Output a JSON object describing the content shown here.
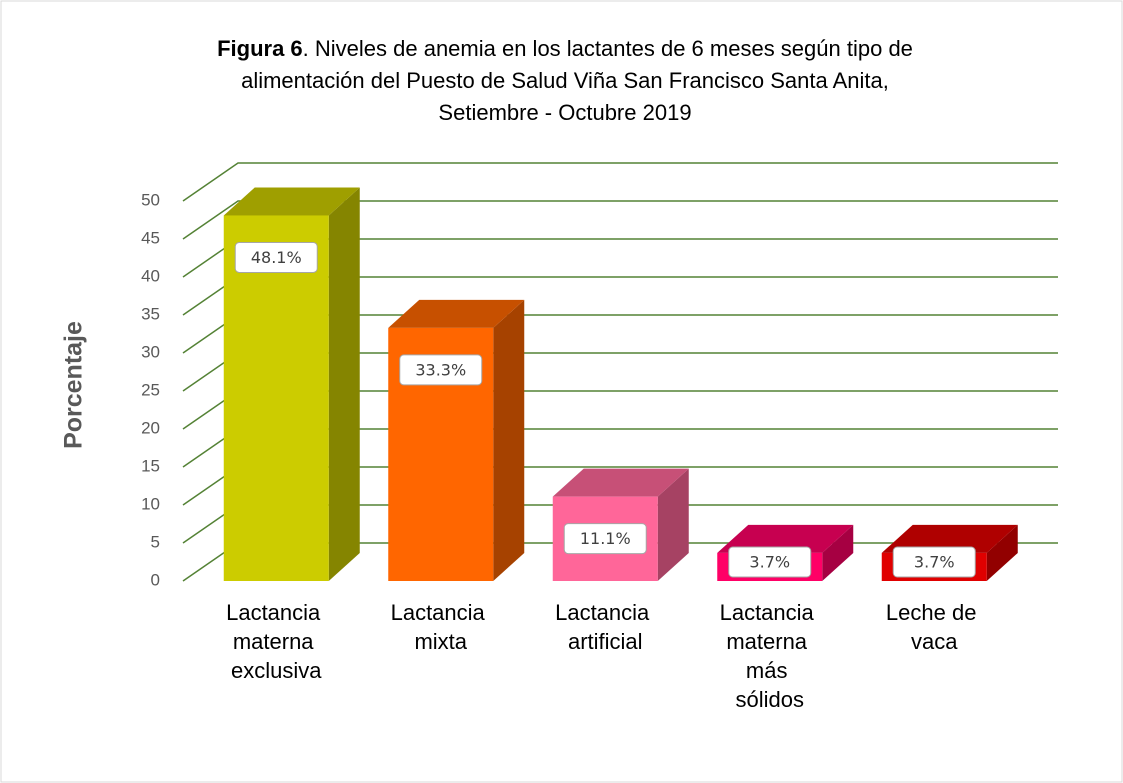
{
  "chart_data": {
    "type": "bar3d",
    "figure_label": "Figura 6",
    "title_lines": [
      ". Niveles de anemia en los lactantes de 6 meses según tipo de",
      "alimentación del Puesto de Salud Viña San Francisco Santa Anita,",
      "Setiembre - Octubre 2019"
    ],
    "y_label": "Porcentaje",
    "categories": [
      "Lactancia materna exclusiva",
      "Lactancia mixta",
      "Lactancia artificial",
      "Lactancia materna más sólidos",
      "Leche de vaca"
    ],
    "values": [
      48.1,
      33.3,
      11.1,
      3.7,
      3.7
    ],
    "value_labels": [
      "48.1%",
      "33.3%",
      "11.1%",
      "3.7%",
      "3.7%"
    ],
    "colors": [
      "#cccc00",
      "#ff6600",
      "#ff6699",
      "#ff0066",
      "#e00000"
    ],
    "grid_color": "#548235",
    "ylim": [
      0,
      50
    ],
    "yticks": [
      0,
      5,
      10,
      15,
      20,
      25,
      30,
      35,
      40,
      45,
      50
    ],
    "grid": true
  }
}
